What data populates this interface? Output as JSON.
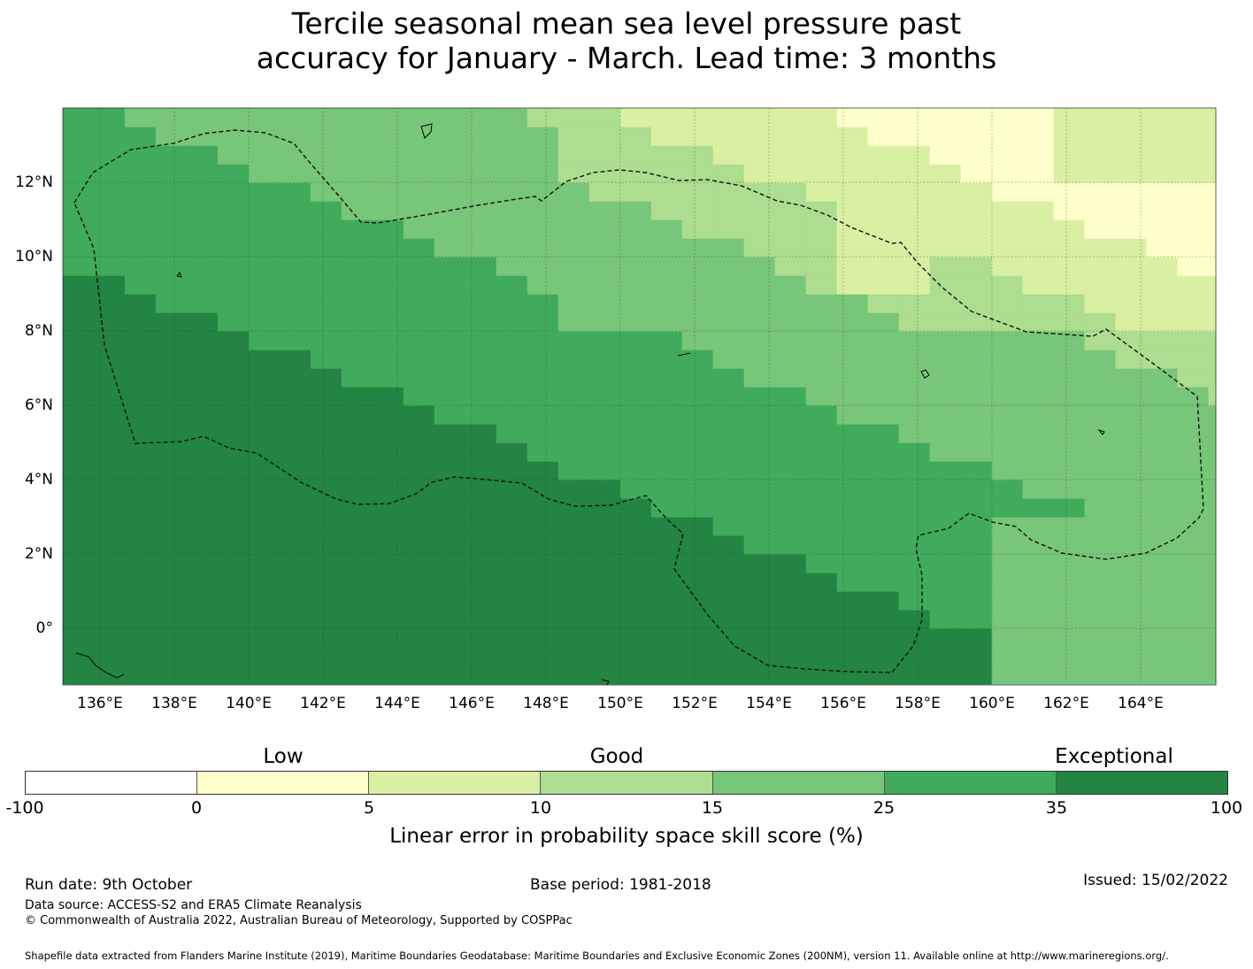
{
  "title_line1": "Tercile seasonal mean sea level pressure past",
  "title_line2": "accuracy for January - March. Lead time: 3 months",
  "map": {
    "lon_range": [
      135,
      166
    ],
    "lat_range": [
      -1.5,
      14
    ],
    "lat_ticks": [
      "12°N",
      "10°N",
      "8°N",
      "6°N",
      "4°N",
      "2°N",
      "0°"
    ],
    "lon_ticks": [
      "136°E",
      "138°E",
      "140°E",
      "142°E",
      "144°E",
      "146°E",
      "148°E",
      "150°E",
      "152°E",
      "154°E",
      "156°E",
      "158°E",
      "160°E",
      "162°E",
      "164°E"
    ],
    "grid": true
  },
  "colorbar": {
    "categories": [
      "Low",
      "Good",
      "Exceptional"
    ],
    "ticks": [
      "-100",
      "0",
      "5",
      "10",
      "15",
      "25",
      "35",
      "100"
    ],
    "colors": [
      "#ffffff",
      "#ffffcc",
      "#d9f0a3",
      "#addd8e",
      "#78c679",
      "#41ab5d",
      "#238443"
    ],
    "label": "Linear error in probability space skill score (%)"
  },
  "footer": {
    "run_date": "Run date: 9th October",
    "base_period": "Base period: 1981-2018",
    "issued": "Issued: 15/02/2022",
    "data_source": "Data source: ACCESS-S2 and ERA5 Climate Reanalysis",
    "copyright": "© Commonwealth of Australia 2022, Australian Bureau of Meteorology, Supported by COSPPac",
    "shapefile": "Shapefile data extracted from Flanders Marine Institute (2019), Maritime Boundaries Geodatabase: Maritime Boundaries and Exclusive Economic Zones (200NM), version 11. Available online at http://www.marineregions.org/."
  }
}
